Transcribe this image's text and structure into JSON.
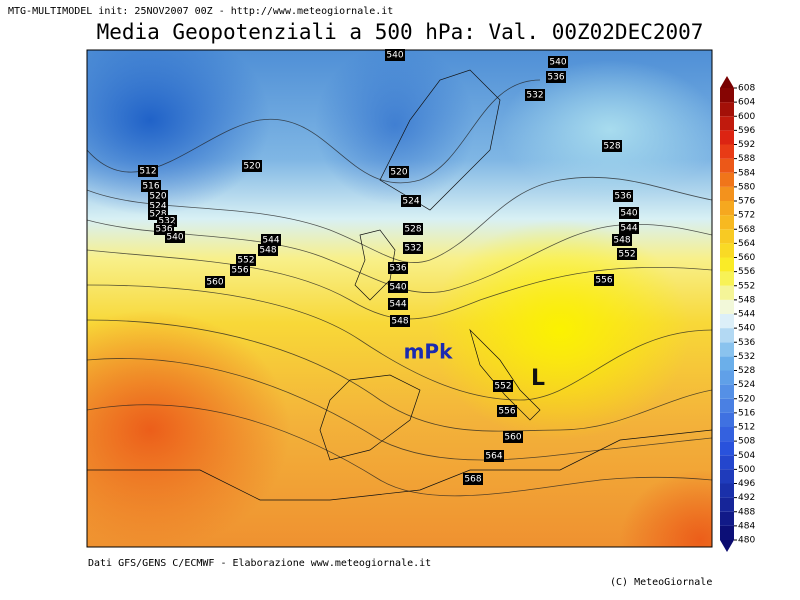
{
  "header": {
    "model_line": "MTG-MULTIMODEL init: 25NOV2007 00Z - http://www.meteogiornale.it",
    "title": "Media Geopotenziali a 500 hPa: Val. 00Z02DEC2007"
  },
  "map": {
    "labels": [
      "mPk",
      "L"
    ],
    "contour_labels": [
      540,
      540,
      536,
      532,
      528,
      520,
      520,
      512,
      516,
      520,
      524,
      528,
      532,
      536,
      540,
      524,
      528,
      532,
      544,
      548,
      552,
      556,
      560,
      536,
      540,
      544,
      548,
      536,
      540,
      544,
      548,
      552,
      556,
      552,
      556,
      560,
      564,
      568
    ]
  },
  "colorbar": {
    "ticks": [
      480,
      484,
      488,
      492,
      496,
      500,
      504,
      508,
      512,
      516,
      520,
      524,
      528,
      532,
      536,
      540,
      544,
      548,
      552,
      556,
      560,
      564,
      568,
      572,
      576,
      580,
      584,
      588,
      592,
      596,
      600,
      604,
      608
    ]
  },
  "footer": {
    "source": "Dati GFS/GENS C/ECMWF - Elaborazione www.meteogiornale.it",
    "credit": "(C) MeteoGiornale"
  }
}
